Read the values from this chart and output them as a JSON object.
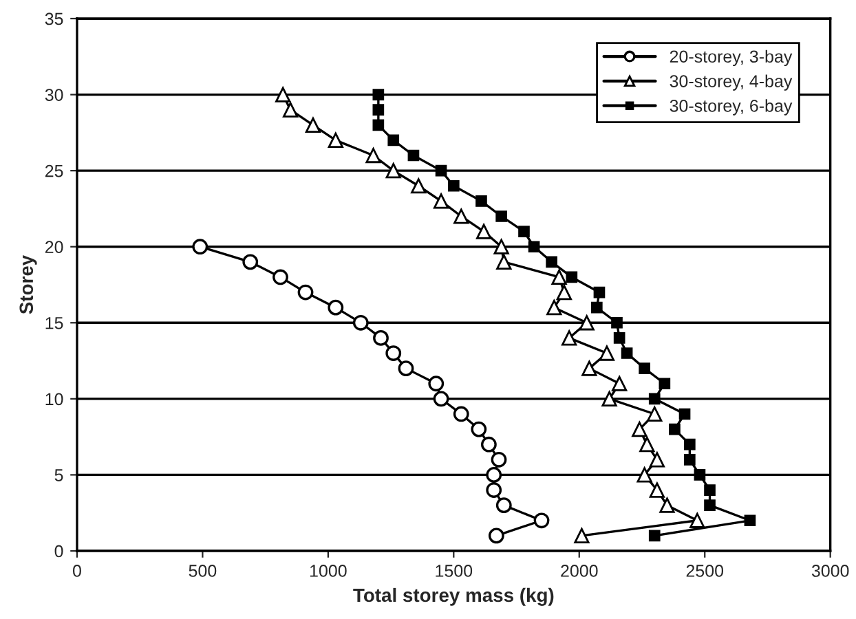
{
  "chart_data": {
    "type": "line",
    "xlabel": "Total storey mass (kg)",
    "ylabel": "Storey",
    "xlim": [
      0,
      3000
    ],
    "xticks": [
      0,
      500,
      1000,
      1500,
      2000,
      2500,
      3000
    ],
    "ylim": [
      0,
      35
    ],
    "yticks": [
      0,
      5,
      10,
      15,
      20,
      25,
      30,
      35
    ],
    "grid": "y",
    "legend": "top right",
    "series": [
      {
        "name": "20-storey, 3-bay",
        "color": "#000000",
        "marker": "circle",
        "x": [
          1670,
          1850,
          1700,
          1660,
          1660,
          1680,
          1640,
          1600,
          1530,
          1450,
          1430,
          1310,
          1260,
          1210,
          1130,
          1030,
          910,
          810,
          690,
          490
        ],
        "values": [
          1,
          2,
          3,
          4,
          5,
          6,
          7,
          8,
          9,
          10,
          11,
          12,
          13,
          14,
          15,
          16,
          17,
          18,
          19,
          20
        ]
      },
      {
        "name": "30-storey, 4-bay",
        "color": "#000000",
        "marker": "triangle",
        "x": [
          2010,
          2470,
          2350,
          2310,
          2260,
          2310,
          2270,
          2240,
          2300,
          2120,
          2160,
          2040,
          2110,
          1960,
          2030,
          1900,
          1940,
          1920,
          1700,
          1690,
          1620,
          1530,
          1450,
          1360,
          1260,
          1180,
          1030,
          940,
          850,
          820
        ],
        "values": [
          1,
          2,
          3,
          4,
          5,
          6,
          7,
          8,
          9,
          10,
          11,
          12,
          13,
          14,
          15,
          16,
          17,
          18,
          19,
          20,
          21,
          22,
          23,
          24,
          25,
          26,
          27,
          28,
          29,
          30
        ]
      },
      {
        "name": "30-storey, 6-bay",
        "color": "#000000",
        "marker": "square",
        "x": [
          2300,
          2680,
          2520,
          2520,
          2480,
          2440,
          2440,
          2380,
          2420,
          2300,
          2340,
          2260,
          2190,
          2160,
          2150,
          2070,
          2080,
          1970,
          1890,
          1820,
          1780,
          1690,
          1610,
          1500,
          1450,
          1340,
          1260,
          1200,
          1200,
          1200
        ],
        "values": [
          1,
          2,
          3,
          4,
          5,
          6,
          7,
          8,
          9,
          10,
          11,
          12,
          13,
          14,
          15,
          16,
          17,
          18,
          19,
          20,
          21,
          22,
          23,
          24,
          25,
          26,
          27,
          28,
          29,
          30
        ]
      }
    ]
  }
}
